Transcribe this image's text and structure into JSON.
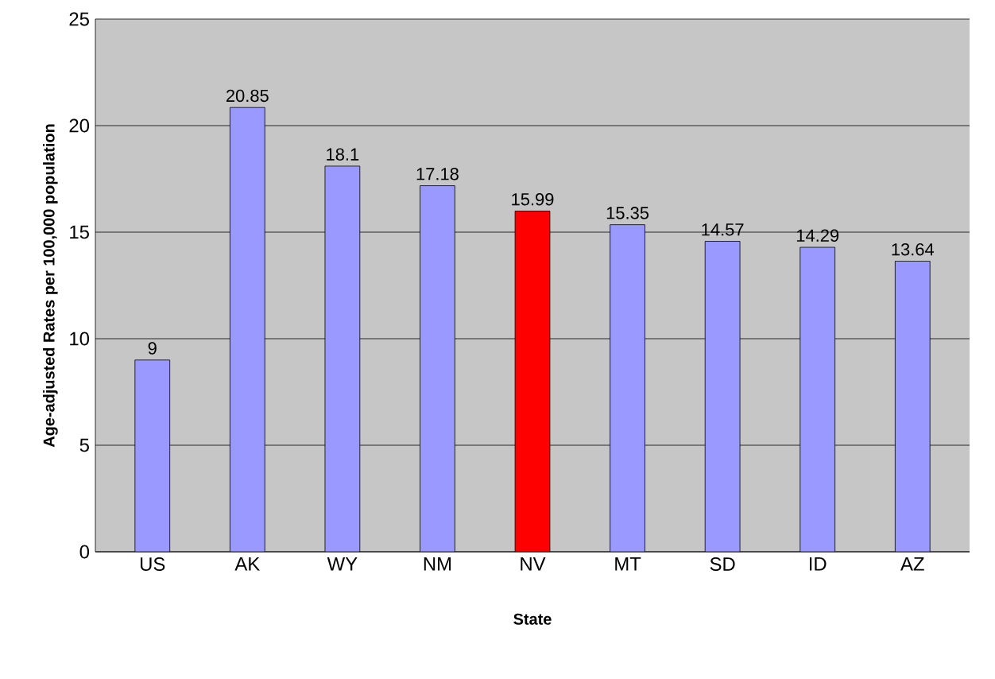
{
  "chart_data": {
    "type": "bar",
    "xlabel": "State",
    "ylabel": "Age-adjusted Rates per 100,000 population",
    "categories": [
      "US",
      "AK",
      "WY",
      "NM",
      "NV",
      "MT",
      "SD",
      "ID",
      "AZ"
    ],
    "values": [
      9,
      20.85,
      18.1,
      17.18,
      15.99,
      15.35,
      14.57,
      14.29,
      13.64
    ],
    "colors": [
      "#9999ff",
      "#9999ff",
      "#9999ff",
      "#9999ff",
      "#ff0000",
      "#9999ff",
      "#9999ff",
      "#9999ff",
      "#9999ff"
    ],
    "ylim": [
      0,
      25
    ],
    "yticks": [
      0,
      5,
      10,
      15,
      20,
      25
    ],
    "grid": "y",
    "data_labels": true
  }
}
